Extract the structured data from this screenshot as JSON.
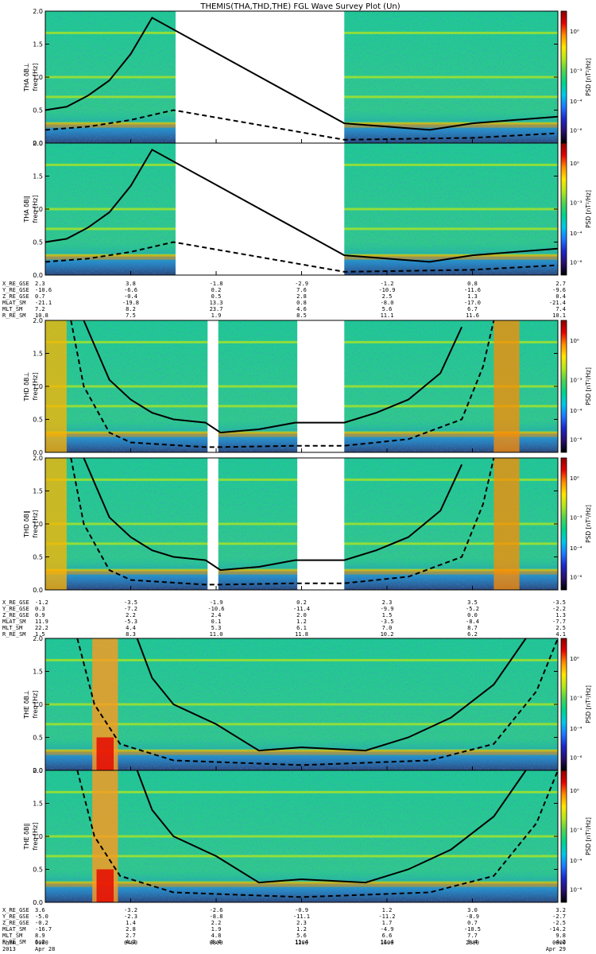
{
  "chart_data": {
    "type": "heatmap",
    "title": "THEMIS(THA,THD,THE) FGL Wave Survey Plot (Un)",
    "ylabel_unit": "freq [Hz]",
    "colorbar_label": "PSD [nT²/Hz]",
    "colorbar_ticks": [
      "10⁰",
      "10⁻³",
      "10⁻⁴",
      "10⁻⁶"
    ],
    "colormap": [
      "#000000",
      "#2a0f6e",
      "#1e28c8",
      "#1e78ff",
      "#00c8e6",
      "#00d28c",
      "#50d250",
      "#b4e61e",
      "#ffe600",
      "#ff8c00",
      "#e60000",
      "#8c0000"
    ],
    "ylim": [
      0.0,
      2.0
    ],
    "y_ticks": [
      "2.0",
      "1.5",
      "1.0",
      "0.5",
      "0.0"
    ],
    "x_ticks": [
      "0000",
      "0400",
      "0800",
      "1200",
      "1600",
      "2000",
      "0000"
    ],
    "xlim_hours": [
      0,
      24
    ],
    "time_label_rows": [
      {
        "label": "hhmm",
        "values": [
          "0000",
          "0400",
          "0800",
          "1200",
          "1600",
          "2000",
          "0000"
        ]
      },
      {
        "label": "2013",
        "values": [
          "Apr 28",
          "",
          "",
          "",
          "",
          "",
          "Apr 29"
        ]
      }
    ],
    "panels": [
      {
        "label": "THA δB⊥",
        "probe": "THA",
        "data_gaps_hours": [
          [
            6.1,
            14.0
          ]
        ],
        "line_solid": [
          [
            0,
            0.5
          ],
          [
            1,
            0.55
          ],
          [
            2,
            0.72
          ],
          [
            3,
            0.95
          ],
          [
            4,
            1.35
          ],
          [
            5,
            1.9
          ],
          [
            14,
            0.3
          ],
          [
            16,
            0.25
          ],
          [
            18,
            0.2
          ],
          [
            20,
            0.3
          ],
          [
            22,
            0.35
          ],
          [
            24,
            0.4
          ]
        ],
        "line_dashed": [
          [
            0,
            0.2
          ],
          [
            2,
            0.25
          ],
          [
            4,
            0.35
          ],
          [
            6,
            0.5
          ],
          [
            14,
            0.05
          ],
          [
            20,
            0.08
          ],
          [
            24,
            0.15
          ]
        ]
      },
      {
        "label": "THA δB∥",
        "probe": "THA",
        "data_gaps_hours": [
          [
            6.1,
            14.0
          ]
        ],
        "line_solid": [
          [
            0,
            0.5
          ],
          [
            1,
            0.55
          ],
          [
            2,
            0.72
          ],
          [
            3,
            0.95
          ],
          [
            4,
            1.35
          ],
          [
            5,
            1.9
          ],
          [
            14,
            0.3
          ],
          [
            16,
            0.25
          ],
          [
            18,
            0.2
          ],
          [
            20,
            0.3
          ],
          [
            22,
            0.35
          ],
          [
            24,
            0.4
          ]
        ],
        "line_dashed": [
          [
            0,
            0.2
          ],
          [
            2,
            0.25
          ],
          [
            4,
            0.35
          ],
          [
            6,
            0.5
          ],
          [
            14,
            0.05
          ],
          [
            20,
            0.08
          ],
          [
            24,
            0.15
          ]
        ]
      },
      {
        "label": "THD δB⊥",
        "probe": "THD",
        "data_gaps_hours": [
          [
            7.6,
            8.1
          ],
          [
            11.8,
            14.0
          ]
        ],
        "line_solid": [
          [
            1.8,
            2.0
          ],
          [
            3,
            1.1
          ],
          [
            4,
            0.8
          ],
          [
            5,
            0.6
          ],
          [
            6,
            0.5
          ],
          [
            7.5,
            0.45
          ],
          [
            8.2,
            0.3
          ],
          [
            10,
            0.35
          ],
          [
            11.7,
            0.45
          ],
          [
            14,
            0.45
          ],
          [
            15.5,
            0.6
          ],
          [
            17,
            0.8
          ],
          [
            18.5,
            1.2
          ],
          [
            19.5,
            1.9
          ]
        ],
        "line_dashed": [
          [
            1.2,
            2.0
          ],
          [
            1.8,
            1.0
          ],
          [
            3,
            0.3
          ],
          [
            4,
            0.15
          ],
          [
            7.5,
            0.08
          ],
          [
            8.2,
            0.08
          ],
          [
            11.7,
            0.1
          ],
          [
            14,
            0.1
          ],
          [
            17,
            0.2
          ],
          [
            19.5,
            0.5
          ],
          [
            20.5,
            1.3
          ],
          [
            21,
            2.0
          ]
        ]
      },
      {
        "label": "THD δB∥",
        "probe": "THD",
        "data_gaps_hours": [
          [
            7.6,
            8.1
          ],
          [
            11.8,
            14.0
          ]
        ],
        "line_solid": [
          [
            1.8,
            2.0
          ],
          [
            3,
            1.1
          ],
          [
            4,
            0.8
          ],
          [
            5,
            0.6
          ],
          [
            6,
            0.5
          ],
          [
            7.5,
            0.45
          ],
          [
            8.2,
            0.3
          ],
          [
            10,
            0.35
          ],
          [
            11.7,
            0.45
          ],
          [
            14,
            0.45
          ],
          [
            15.5,
            0.6
          ],
          [
            17,
            0.8
          ],
          [
            18.5,
            1.2
          ],
          [
            19.5,
            1.9
          ]
        ],
        "line_dashed": [
          [
            1.2,
            2.0
          ],
          [
            1.8,
            1.0
          ],
          [
            3,
            0.3
          ],
          [
            4,
            0.15
          ],
          [
            7.5,
            0.08
          ],
          [
            8.2,
            0.08
          ],
          [
            11.7,
            0.1
          ],
          [
            14,
            0.1
          ],
          [
            17,
            0.2
          ],
          [
            19.5,
            0.5
          ],
          [
            20.5,
            1.3
          ],
          [
            21,
            2.0
          ]
        ]
      },
      {
        "label": "THE δB⊥",
        "probe": "THE",
        "data_gaps_hours": [],
        "line_solid": [
          [
            4.3,
            2.0
          ],
          [
            5,
            1.4
          ],
          [
            6,
            1.0
          ],
          [
            8,
            0.7
          ],
          [
            9.5,
            0.4
          ],
          [
            10,
            0.3
          ],
          [
            12,
            0.35
          ],
          [
            15,
            0.3
          ],
          [
            17,
            0.5
          ],
          [
            19,
            0.8
          ],
          [
            21,
            1.3
          ],
          [
            22.5,
            2.0
          ]
        ],
        "line_dashed": [
          [
            1.5,
            2.0
          ],
          [
            2.3,
            1.0
          ],
          [
            3.5,
            0.4
          ],
          [
            6,
            0.15
          ],
          [
            12,
            0.08
          ],
          [
            18,
            0.15
          ],
          [
            21,
            0.4
          ],
          [
            23,
            1.2
          ],
          [
            24,
            2.0
          ]
        ]
      },
      {
        "label": "THE δB∥",
        "probe": "THE",
        "data_gaps_hours": [],
        "line_solid": [
          [
            4.3,
            2.0
          ],
          [
            5,
            1.4
          ],
          [
            6,
            1.0
          ],
          [
            8,
            0.7
          ],
          [
            9.5,
            0.4
          ],
          [
            10,
            0.3
          ],
          [
            12,
            0.35
          ],
          [
            15,
            0.3
          ],
          [
            17,
            0.5
          ],
          [
            19,
            0.8
          ],
          [
            21,
            1.3
          ],
          [
            22.5,
            2.0
          ]
        ],
        "line_dashed": [
          [
            1.5,
            2.0
          ],
          [
            2.3,
            1.0
          ],
          [
            3.5,
            0.4
          ],
          [
            6,
            0.15
          ],
          [
            12,
            0.08
          ],
          [
            18,
            0.15
          ],
          [
            21,
            0.4
          ],
          [
            23,
            1.2
          ],
          [
            24,
            2.0
          ]
        ]
      }
    ],
    "ephemeris": [
      {
        "probe": "THA",
        "rows": [
          {
            "label": "X_RE_GSE",
            "values": [
              "2.3",
              "3.8",
              "-1.8",
              "-2.9",
              "-1.2",
              "0.8",
              "2.7"
            ]
          },
          {
            "label": "Y_RE_GSE",
            "values": [
              "-10.6",
              "-6.6",
              "0.2",
              "7.6",
              "-10.9",
              "-11.6",
              "-9.6"
            ]
          },
          {
            "label": "Z_RE_GSE",
            "values": [
              "0.7",
              "-0.4",
              "0.5",
              "2.8",
              "2.5",
              "1.3",
              "0.4"
            ]
          },
          {
            "label": "MLAT_SM",
            "values": [
              "-21.1",
              "-19.8",
              "13.3",
              "0.8",
              "-8.0",
              "-17.0",
              "-21.4"
            ]
          },
          {
            "label": "MLT_SM",
            "values": [
              "7.2",
              "8.2",
              "23.7",
              "4.6",
              "5.6",
              "6.7",
              "7.4"
            ]
          },
          {
            "label": "R_RE_SM",
            "values": [
              "10.8",
              "7.5",
              "1.9",
              "8.5",
              "11.1",
              "11.6",
              "10.1"
            ]
          }
        ]
      },
      {
        "probe": "THD",
        "rows": [
          {
            "label": "X_RE_GSE",
            "values": [
              "-1.2",
              "-3.5",
              "-1.9",
              "0.2",
              "2.3",
              "3.5",
              "-3.5"
            ]
          },
          {
            "label": "Y_RE_GSE",
            "values": [
              "0.3",
              "-7.2",
              "-10.6",
              "-11.4",
              "-9.9",
              "-5.2",
              "-2.2"
            ]
          },
          {
            "label": "Z_RE_GSE",
            "values": [
              "0.9",
              "2.2",
              "2.4",
              "2.0",
              "1.5",
              "0.0",
              "1.3"
            ]
          },
          {
            "label": "MLAT_SM",
            "values": [
              "11.9",
              "-5.3",
              "0.1",
              "1.2",
              "-3.5",
              "-8.4",
              "-7.7"
            ]
          },
          {
            "label": "MLT_SM",
            "values": [
              "22.2",
              "4.4",
              "5.3",
              "6.1",
              "7.0",
              "8.7",
              "2.5"
            ]
          },
          {
            "label": "R_RE_SM",
            "values": [
              "1.5",
              "8.3",
              "11.0",
              "11.8",
              "10.2",
              "6.2",
              "4.1"
            ]
          }
        ]
      },
      {
        "probe": "THE",
        "rows": [
          {
            "label": "X_RE_GSE",
            "values": [
              "3.6",
              "-3.2",
              "-2.6",
              "-0.9",
              "1.2",
              "3.0",
              "3.2"
            ]
          },
          {
            "label": "Y_RE_GSE",
            "values": [
              "-5.0",
              "-2.3",
              "-8.8",
              "-11.1",
              "-11.2",
              "-8.9",
              "-2.7"
            ]
          },
          {
            "label": "Z_RE_GSE",
            "values": [
              "-0.2",
              "1.4",
              "2.2",
              "2.3",
              "1.7",
              "0.7",
              "-2.5"
            ]
          },
          {
            "label": "MLAT_SM",
            "values": [
              "-16.7",
              "2.8",
              "1.9",
              "1.2",
              "-4.9",
              "-10.5",
              "-14.2"
            ]
          },
          {
            "label": "MLT_SM",
            "values": [
              "8.9",
              "2.7",
              "4.8",
              "5.6",
              "6.6",
              "7.7",
              "9.8"
            ]
          },
          {
            "label": "R_RE_SM",
            "values": [
              "6.2",
              "4.2",
              "8.4",
              "11.4",
              "11.4",
              "9.4",
              "4.2"
            ]
          }
        ]
      }
    ]
  }
}
